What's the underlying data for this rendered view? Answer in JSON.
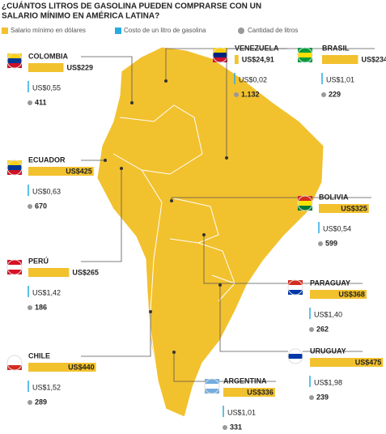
{
  "title": [
    "¿CUÁNTOS LITROS DE GASOLINA PUEDEN COMPRARSE CON UN",
    "SALARIO MÍNIMO EN AMÉRICA LATINA?"
  ],
  "legend": [
    "Salario mínimo en dólares",
    "Costo de un litro de gasolina",
    "Cantidad de litros"
  ],
  "countries": [
    {
      "name": "COLOMBIA",
      "salary": 229,
      "salary_label": "US$229",
      "gas_label": "US$0,55",
      "liters_label": "411"
    },
    {
      "name": "VENEZUELA",
      "salary": 24.91,
      "salary_label": "US$24,91",
      "gas_label": "US$0,02",
      "liters_label": "1.132"
    },
    {
      "name": "BRASIL",
      "salary": 234,
      "salary_label": "US$234",
      "gas_label": "US$1,01",
      "liters_label": "229"
    },
    {
      "name": "ECUADOR",
      "salary": 425,
      "salary_label": "US$425",
      "gas_label": "US$0,63",
      "liters_label": "670"
    },
    {
      "name": "BOLIVIA",
      "salary": 325,
      "salary_label": "US$325",
      "gas_label": "US$0,54",
      "liters_label": "599"
    },
    {
      "name": "PERÚ",
      "salary": 265,
      "salary_label": "US$265",
      "gas_label": "US$1,42",
      "liters_label": "186"
    },
    {
      "name": "PARAGUAY",
      "salary": 368,
      "salary_label": "US$368",
      "gas_label": "US$1,40",
      "liters_label": "262"
    },
    {
      "name": "CHILE",
      "salary": 440,
      "salary_label": "US$440",
      "gas_label": "US$1,52",
      "liters_label": "289"
    },
    {
      "name": "URUGUAY",
      "salary": 475,
      "salary_label": "US$475",
      "gas_label": "US$1,98",
      "liters_label": "239"
    },
    {
      "name": "ARGENTINA",
      "salary": 336,
      "salary_label": "US$336",
      "gas_label": "US$1,01",
      "liters_label": "331"
    }
  ]
}
